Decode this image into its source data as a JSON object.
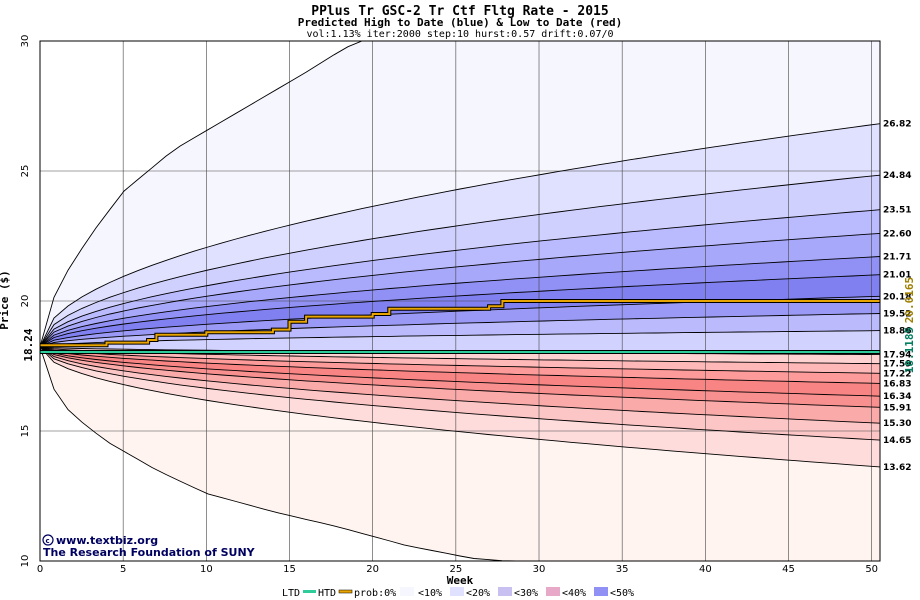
{
  "title": "PPlus Tr GSC-2 Tr Ctf Fltg Rate - 2015",
  "subtitle": "Predicted High to Date (blue) &  Low to Date (red)",
  "params": "vol:1.13% iter:2000 step:10 hurst:0.57 drift:0.07/0",
  "credit_url": "www.textbiz.org",
  "credit_org": "The Research Foundation of SUNY",
  "legend": {
    "ltd": "LTD",
    "htd": "HTD",
    "prob": "prob:0%",
    "b10": "<10%",
    "b20": "<20%",
    "b30": "<30%",
    "b40": "<40%",
    "b50": "<50%"
  },
  "colors": {
    "htd_line": "#2ecc9a",
    "ltd_line": "#000000",
    "orange": "#e8a400",
    "green_label": "#008060",
    "olive_label": "#a08000"
  },
  "chart_data": {
    "type": "area",
    "xlabel": "Week",
    "ylabel": "Price ($)",
    "xlim": [
      0,
      50.5
    ],
    "ylim": [
      10,
      30
    ],
    "x_ticks": [
      0,
      5,
      10,
      15,
      20,
      25,
      30,
      35,
      40,
      45,
      50
    ],
    "y_ticks": [
      10,
      15,
      20,
      25,
      30
    ],
    "start_price": "18.24",
    "right_label_green": "18.1185",
    "right_label_olive": "20.0165",
    "upper_curves_end": [
      30.0,
      26.82,
      24.84,
      23.51,
      22.6,
      21.71,
      21.01,
      20.18,
      19.52,
      18.86
    ],
    "upper_end_labels": [
      "26.82",
      "24.84",
      "23.51",
      "22.60",
      "21.71",
      "21.01",
      "20.18",
      "19.52",
      "18.86"
    ],
    "lower_curves_end": [
      17.94,
      17.59,
      17.22,
      16.83,
      16.34,
      15.91,
      15.3,
      14.65,
      13.62,
      10.0
    ],
    "lower_end_labels": [
      "17.94",
      "17.59",
      "17.22",
      "16.83",
      "16.34",
      "15.91",
      "15.30",
      "14.65",
      "13.62"
    ],
    "outer_high_path": [
      [
        0,
        18.24
      ],
      [
        1,
        20.5
      ],
      [
        3,
        22.5
      ],
      [
        5,
        24.2
      ],
      [
        8,
        25.8
      ],
      [
        12,
        27.3
      ],
      [
        16,
        28.8
      ],
      [
        18,
        29.6
      ],
      [
        20,
        30.3
      ]
    ],
    "outer_low_path": [
      [
        0,
        18.24
      ],
      [
        1,
        16.3
      ],
      [
        2,
        15.6
      ],
      [
        4,
        14.6
      ],
      [
        7,
        13.5
      ],
      [
        10,
        12.6
      ],
      [
        14,
        11.9
      ],
      [
        18,
        11.3
      ],
      [
        22,
        10.6
      ],
      [
        26,
        10.1
      ],
      [
        32,
        9.8
      ]
    ],
    "htd_value": 18.04,
    "orange_step_path": [
      [
        0,
        18.3
      ],
      [
        4,
        18.4
      ],
      [
        6.5,
        18.5
      ],
      [
        7,
        18.7
      ],
      [
        10,
        18.8
      ],
      [
        14,
        18.9
      ],
      [
        15,
        19.2
      ],
      [
        16,
        19.4
      ],
      [
        20,
        19.5
      ],
      [
        21,
        19.7
      ],
      [
        27,
        19.8
      ],
      [
        27.8,
        20.0
      ],
      [
        50.5,
        20.0
      ]
    ],
    "fill_colors_upper": [
      "#f6f6ff",
      "#e0e0ff",
      "#d0d0ff",
      "#babaff",
      "#a8a8fb",
      "#9090f5",
      "#8080f0",
      "#9a9af6",
      "#babafc",
      "#d2d2ff"
    ],
    "fill_colors_lower": [
      "#ffe6e6",
      "#ffd2d2",
      "#ffb8b8",
      "#fd9a9a",
      "#f98484",
      "#f99090",
      "#fbaaaa",
      "#fdc6c6",
      "#ffdcdc",
      "#fff4f0"
    ]
  }
}
